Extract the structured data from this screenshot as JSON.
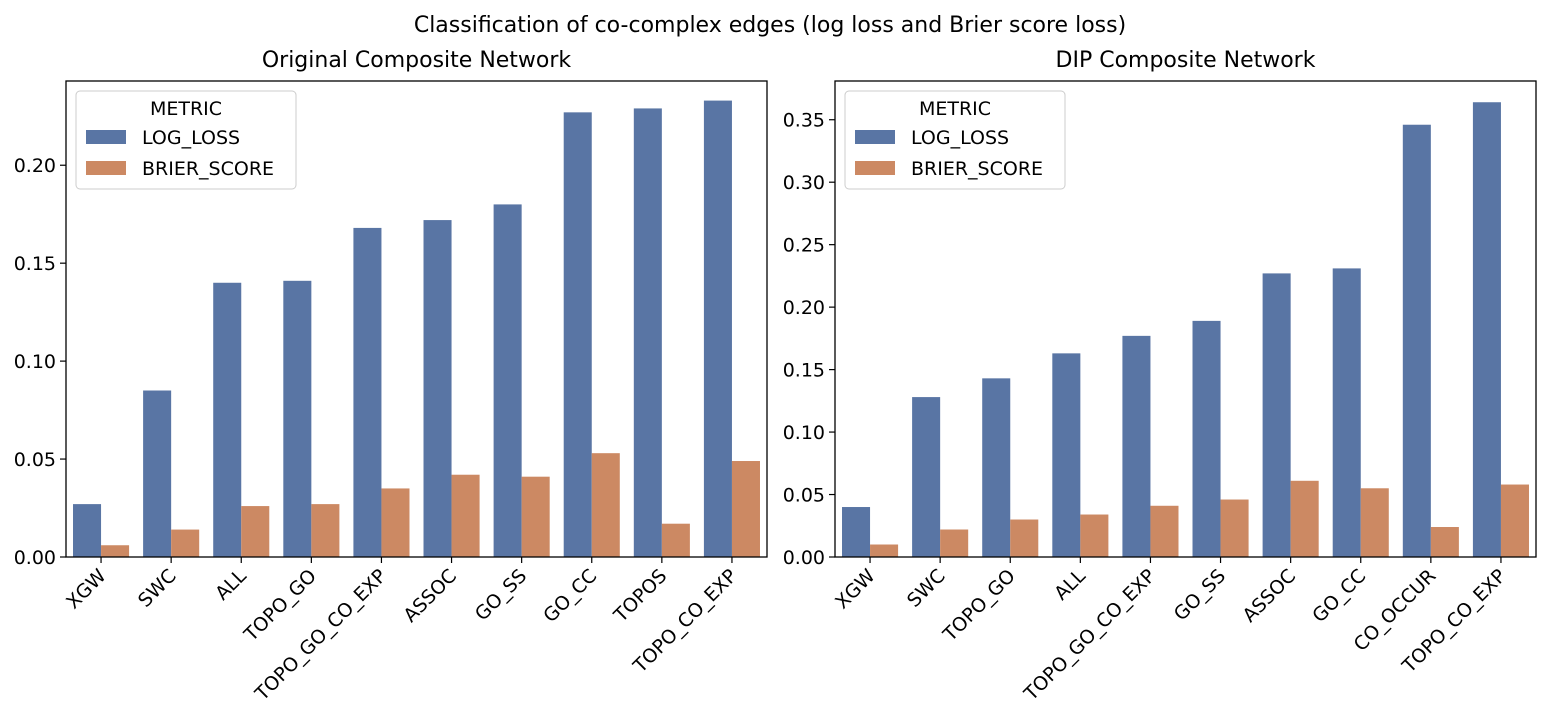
{
  "figure": {
    "suptitle": "Classification of co-complex edges (log loss and Brier score loss)"
  },
  "chart_data": [
    {
      "type": "bar",
      "title": "Original Composite Network",
      "xlabel": "",
      "ylabel": "",
      "ylim": [
        0,
        0.243
      ],
      "yticks": [
        0.0,
        0.05,
        0.1,
        0.15,
        0.2
      ],
      "ytick_labels": [
        "0.00",
        "0.05",
        "0.10",
        "0.15",
        "0.20"
      ],
      "grid": false,
      "legend": {
        "title": "METRIC",
        "placement": "top-left"
      },
      "categories": [
        "XGW",
        "SWC",
        "ALL",
        "TOPO_GO",
        "TOPO_GO_CO_EXP",
        "ASSOC",
        "GO_SS",
        "GO_CC",
        "TOPOS",
        "TOPO_CO_EXP"
      ],
      "series": [
        {
          "name": "LOG_LOSS",
          "color": "#5975a4",
          "values": [
            0.027,
            0.085,
            0.14,
            0.141,
            0.168,
            0.172,
            0.18,
            0.227,
            0.229,
            0.233
          ]
        },
        {
          "name": "BRIER_SCORE",
          "color": "#cc8963",
          "values": [
            0.006,
            0.014,
            0.026,
            0.027,
            0.035,
            0.042,
            0.041,
            0.053,
            0.017,
            0.049
          ]
        }
      ]
    },
    {
      "type": "bar",
      "title": "DIP Composite Network",
      "xlabel": "",
      "ylabel": "",
      "ylim": [
        0,
        0.381
      ],
      "yticks": [
        0.0,
        0.05,
        0.1,
        0.15,
        0.2,
        0.25,
        0.3,
        0.35
      ],
      "ytick_labels": [
        "0.00",
        "0.05",
        "0.10",
        "0.15",
        "0.20",
        "0.25",
        "0.30",
        "0.35"
      ],
      "grid": false,
      "legend": {
        "title": "METRIC",
        "placement": "top-left"
      },
      "categories": [
        "XGW",
        "SWC",
        "TOPO_GO",
        "ALL",
        "TOPO_GO_CO_EXP",
        "GO_SS",
        "ASSOC",
        "GO_CC",
        "CO_OCCUR",
        "TOPO_CO_EXP"
      ],
      "series": [
        {
          "name": "LOG_LOSS",
          "color": "#5975a4",
          "values": [
            0.04,
            0.128,
            0.143,
            0.163,
            0.177,
            0.189,
            0.227,
            0.231,
            0.346,
            0.364
          ]
        },
        {
          "name": "BRIER_SCORE",
          "color": "#cc8963",
          "values": [
            0.01,
            0.022,
            0.03,
            0.034,
            0.041,
            0.046,
            0.061,
            0.055,
            0.024,
            0.058
          ]
        }
      ]
    }
  ]
}
